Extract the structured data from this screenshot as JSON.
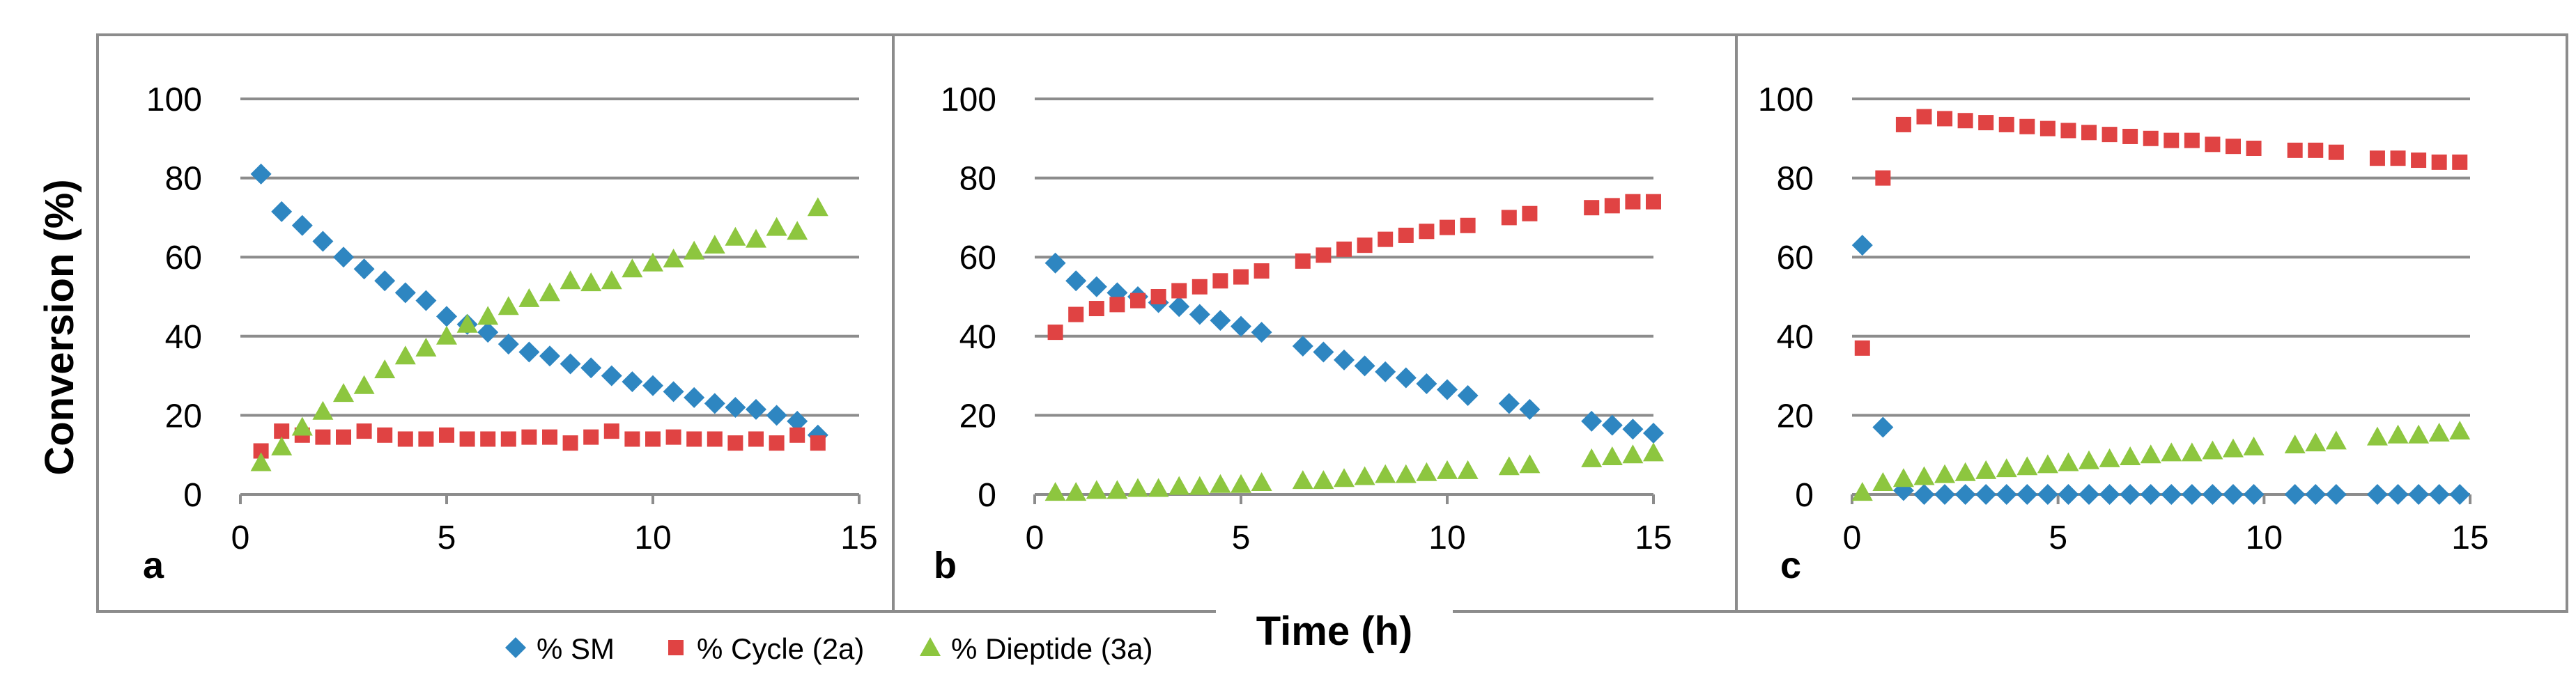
{
  "figure": {
    "ylabel": "Conversion (%)",
    "xlabel": "Time (h)",
    "legend": [
      {
        "label": "% SM",
        "color": "#2e86c1",
        "marker": "diamond"
      },
      {
        "label": "% Cycle (2a)",
        "color": "#e04343",
        "marker": "square"
      },
      {
        "label": "% Dieptide (3a)",
        "color": "#8dc63f",
        "marker": "triangle"
      }
    ]
  },
  "chart_data": [
    {
      "type": "scatter",
      "panel": "a",
      "xlim": [
        0,
        15
      ],
      "ylim": [
        0,
        100
      ],
      "xticks": [
        0,
        5,
        10,
        15
      ],
      "yticks": [
        0,
        20,
        40,
        60,
        80,
        100
      ],
      "grid": true,
      "series": [
        {
          "name": "% SM",
          "x": [
            0.5,
            1,
            1.5,
            2,
            2.5,
            3,
            3.5,
            4,
            4.5,
            5,
            5.5,
            6,
            6.5,
            7,
            7.5,
            8,
            8.5,
            9,
            9.5,
            10,
            10.5,
            11,
            11.5,
            12,
            12.5,
            13,
            13.5,
            14
          ],
          "y": [
            81,
            71.5,
            68,
            64,
            60,
            57,
            54,
            51,
            49,
            45,
            43,
            41,
            38,
            36,
            35,
            33,
            32,
            30,
            28.5,
            27.5,
            26,
            24.5,
            23,
            22,
            21.5,
            20,
            18.5,
            15
          ]
        },
        {
          "name": "% Cycle (2a)",
          "x": [
            0.5,
            1,
            1.5,
            2,
            2.5,
            3,
            3.5,
            4,
            4.5,
            5,
            5.5,
            6,
            6.5,
            7,
            7.5,
            8,
            8.5,
            9,
            9.5,
            10,
            10.5,
            11,
            11.5,
            12,
            12.5,
            13,
            13.5,
            14
          ],
          "y": [
            11,
            16,
            15,
            14.5,
            14.5,
            16,
            15,
            14,
            14,
            15,
            14,
            14,
            14,
            14.5,
            14.5,
            13,
            14.5,
            16,
            14,
            14,
            14.5,
            14,
            14,
            13,
            14,
            13,
            15,
            13
          ]
        },
        {
          "name": "% Dieptide (3a)",
          "x": [
            0.5,
            1,
            1.5,
            2,
            2.5,
            3,
            3.5,
            4,
            4.5,
            5,
            5.5,
            6,
            6.5,
            7,
            7.5,
            8,
            8.5,
            9,
            9.5,
            10,
            10.5,
            11,
            11.5,
            12,
            12.5,
            13,
            13.5,
            14
          ],
          "y": [
            8,
            12,
            17,
            21,
            25.5,
            27.5,
            31.5,
            35,
            37,
            40,
            43,
            45,
            47.5,
            49.5,
            51,
            54,
            53.5,
            54,
            57,
            58.5,
            59.5,
            61.5,
            63,
            65,
            64.5,
            67.5,
            66.5,
            72.5
          ]
        }
      ]
    },
    {
      "type": "scatter",
      "panel": "b",
      "xlim": [
        0,
        15
      ],
      "ylim": [
        0,
        100
      ],
      "xticks": [
        0,
        5,
        10,
        15
      ],
      "yticks": [
        0,
        20,
        40,
        60,
        80,
        100
      ],
      "grid": true,
      "series": [
        {
          "name": "% SM",
          "x": [
            0.5,
            1,
            1.5,
            2,
            2.5,
            3,
            3.5,
            4,
            4.5,
            5,
            5.5,
            6.5,
            7,
            7.5,
            8,
            8.5,
            9,
            9.5,
            10,
            10.5,
            11.5,
            12,
            13.5,
            14,
            14.5,
            15
          ],
          "y": [
            58.5,
            54,
            52.5,
            51,
            50,
            48.5,
            47.5,
            45.5,
            44,
            42.5,
            41,
            37.5,
            36,
            34,
            32.5,
            31,
            29.5,
            28,
            26.5,
            25,
            23,
            21.5,
            18.5,
            17.5,
            16.5,
            15.5
          ]
        },
        {
          "name": "% Cycle (2a)",
          "x": [
            0.5,
            1,
            1.5,
            2,
            2.5,
            3,
            3.5,
            4,
            4.5,
            5,
            5.5,
            6.5,
            7,
            7.5,
            8,
            8.5,
            9,
            9.5,
            10,
            10.5,
            11.5,
            12,
            13.5,
            14,
            14.5,
            15
          ],
          "y": [
            41,
            45.5,
            47,
            48,
            49,
            50,
            51.5,
            52.5,
            54,
            55,
            56.5,
            59,
            60.5,
            62,
            63,
            64.5,
            65.5,
            66.5,
            67.5,
            68,
            70,
            71,
            72.5,
            73,
            74,
            74
          ]
        },
        {
          "name": "% Dieptide (3a)",
          "x": [
            0.5,
            1,
            1.5,
            2,
            2.5,
            3,
            3.5,
            4,
            4.5,
            5,
            5.5,
            6.5,
            7,
            7.5,
            8,
            8.5,
            9,
            9.5,
            10,
            10.5,
            11.5,
            12,
            13.5,
            14,
            14.5,
            15
          ],
          "y": [
            0.5,
            0.5,
            1,
            1,
            1.5,
            1.5,
            2,
            2,
            2.5,
            2.5,
            3,
            3.5,
            3.5,
            4,
            4.5,
            5,
            5,
            5.5,
            6,
            6,
            7,
            7.5,
            9,
            9.5,
            10,
            10.5
          ]
        }
      ]
    },
    {
      "type": "scatter",
      "panel": "c",
      "xlim": [
        0,
        15
      ],
      "ylim": [
        0,
        100
      ],
      "xticks": [
        0,
        5,
        10,
        15
      ],
      "yticks": [
        0,
        20,
        40,
        60,
        80,
        100
      ],
      "grid": true,
      "series": [
        {
          "name": "% SM",
          "x": [
            0.25,
            0.75,
            1.25,
            1.75,
            2.25,
            2.75,
            3.25,
            3.75,
            4.25,
            4.75,
            5.25,
            5.75,
            6.25,
            6.75,
            7.25,
            7.75,
            8.25,
            8.75,
            9.25,
            9.75,
            10.75,
            11.25,
            11.75,
            12.75,
            13.25,
            13.75,
            14.25,
            14.75
          ],
          "y": [
            63,
            17,
            1,
            0,
            0,
            0,
            0,
            0,
            0,
            0,
            0,
            0,
            0,
            0,
            0,
            0,
            0,
            0,
            0,
            0,
            0,
            0,
            0,
            0,
            0,
            0,
            0,
            0
          ]
        },
        {
          "name": "% Cycle (2a)",
          "x": [
            0.25,
            0.75,
            1.25,
            1.75,
            2.25,
            2.75,
            3.25,
            3.75,
            4.25,
            4.75,
            5.25,
            5.75,
            6.25,
            6.75,
            7.25,
            7.75,
            8.25,
            8.75,
            9.25,
            9.75,
            10.75,
            11.25,
            11.75,
            12.75,
            13.25,
            13.75,
            14.25,
            14.75
          ],
          "y": [
            37,
            80,
            93.5,
            95.5,
            95,
            94.5,
            94,
            93.5,
            93,
            92.5,
            92,
            91.5,
            91,
            90.5,
            90,
            89.5,
            89.5,
            88.5,
            88,
            87.5,
            87,
            87,
            86.5,
            85,
            85,
            84.5,
            84,
            84
          ]
        },
        {
          "name": "% Dieptide (3a)",
          "x": [
            0.25,
            0.75,
            1.25,
            1.75,
            2.25,
            2.75,
            3.25,
            3.75,
            4.25,
            4.75,
            5.25,
            5.75,
            6.25,
            6.75,
            7.25,
            7.75,
            8.25,
            8.75,
            9.25,
            9.75,
            10.75,
            11.25,
            11.75,
            12.75,
            13.25,
            13.75,
            14.25,
            14.75
          ],
          "y": [
            0.5,
            3,
            4,
            4.5,
            5,
            5.5,
            6,
            6.5,
            7,
            7.5,
            8,
            8.5,
            9,
            9.5,
            10,
            10.5,
            10.5,
            11,
            11.5,
            12,
            12.5,
            13,
            13.5,
            14.5,
            15,
            15,
            15.5,
            16
          ]
        }
      ]
    }
  ]
}
